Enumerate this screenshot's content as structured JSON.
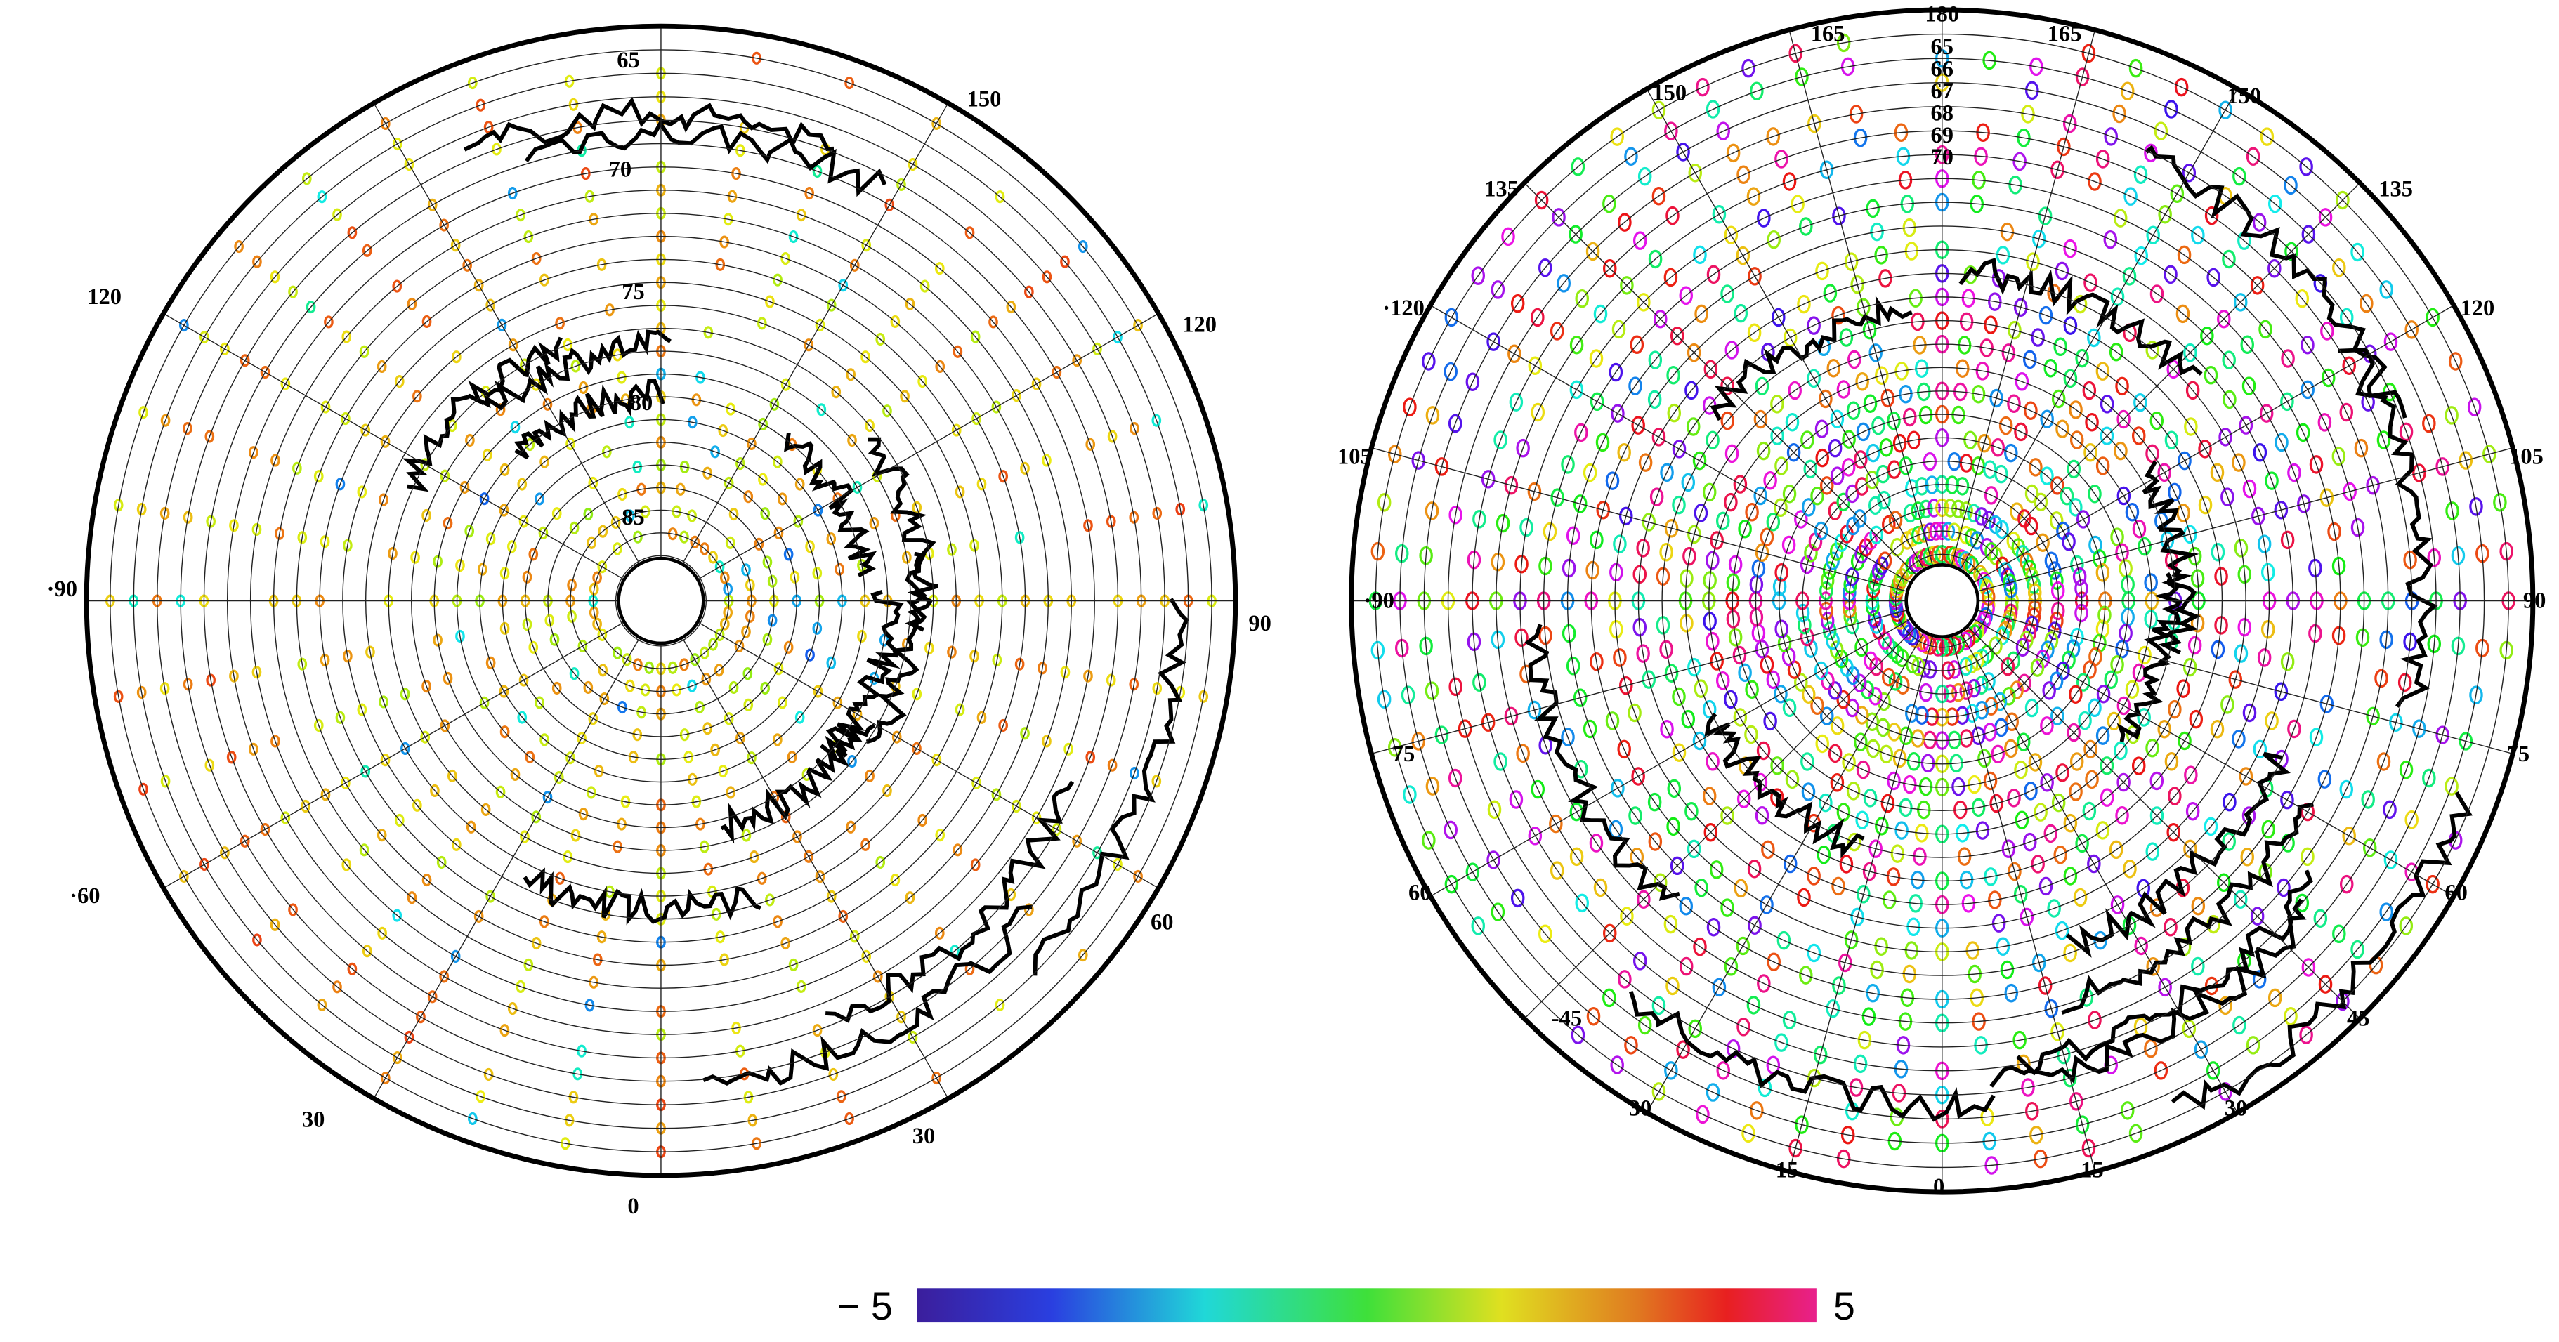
{
  "left_map": {
    "longitude_labels": [
      "150",
      "120",
      "120",
      "·90",
      "90",
      "·60",
      "60",
      "30",
      "30",
      "0"
    ],
    "latitude_labels": [
      "65",
      "70",
      "75",
      "80",
      "85"
    ]
  },
  "right_map": {
    "longitude_labels": [
      "180",
      "165",
      "165",
      "150",
      "150",
      "135",
      "135",
      "·120",
      "120",
      "105",
      "105",
      "·90",
      "90",
      "75",
      "75",
      "60",
      "60",
      "-45",
      "45",
      "30",
      "30",
      "15",
      "15",
      "0"
    ],
    "latitude_labels": [
      "65",
      "66",
      "67",
      "68",
      "69",
      "70"
    ]
  },
  "colorbar": {
    "min_label": "− 5",
    "max_label": "5"
  }
}
